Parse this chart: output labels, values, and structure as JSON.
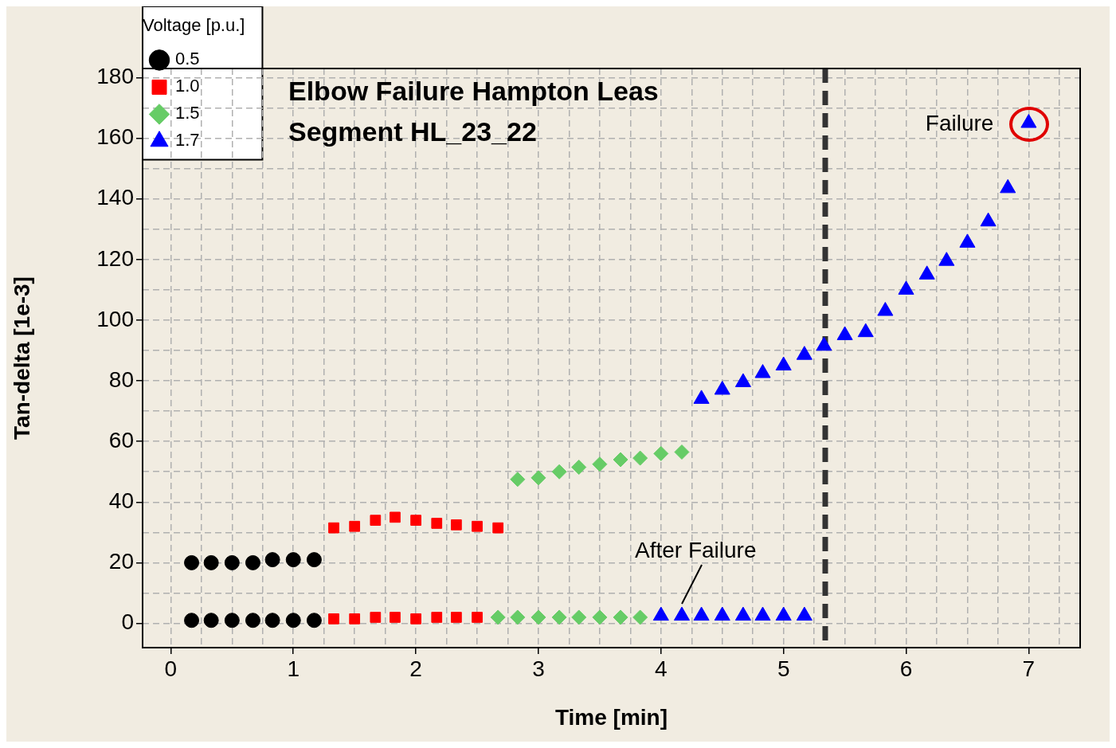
{
  "chart_data": {
    "type": "scatter",
    "title": "Elbow Failure Hampton Leas",
    "subtitle": "Segment HL_23_22",
    "xlabel": "Time [min]",
    "ylabel": "Tan-delta [1e-3]",
    "legend_title": "Voltage [p.u.]",
    "legend": "top left",
    "grid": true,
    "xlim": [
      -0.23,
      7.42
    ],
    "ylim": [
      -8,
      183
    ],
    "xticks": [
      0,
      {
        "value": 0.25,
        "label": null
      },
      {
        "value": 0.5,
        "label": null
      },
      {
        "value": 0.75,
        "label": null
      },
      1,
      {
        "value": 1.25,
        "label": null
      },
      {
        "value": 1.5,
        "label": null
      },
      {
        "value": 1.75,
        "label": null
      },
      2,
      {
        "value": 2.25,
        "label": null
      },
      {
        "value": 2.5,
        "label": null
      },
      {
        "value": 2.75,
        "label": null
      },
      3,
      {
        "value": 3.25,
        "label": null
      },
      {
        "value": 3.5,
        "label": null
      },
      {
        "value": 3.75,
        "label": null
      },
      4,
      {
        "value": 4.25,
        "label": null
      },
      {
        "value": 4.5,
        "label": null
      },
      {
        "value": 4.75,
        "label": null
      },
      5,
      {
        "value": 5.25,
        "label": null
      },
      {
        "value": 5.5,
        "label": null
      },
      {
        "value": 5.75,
        "label": null
      },
      6,
      {
        "value": 6.25,
        "label": null
      },
      {
        "value": 6.5,
        "label": null
      },
      {
        "value": 6.75,
        "label": null
      },
      7,
      {
        "value": 7.25,
        "label": null
      }
    ],
    "yticks": [
      0,
      {
        "value": 10,
        "label": null
      },
      20,
      {
        "value": 30,
        "label": null
      },
      40,
      {
        "value": 50,
        "label": null
      },
      60,
      {
        "value": 70,
        "label": null
      },
      80,
      {
        "value": 90,
        "label": null
      },
      100,
      {
        "value": 110,
        "label": null
      },
      120,
      {
        "value": 130,
        "label": null
      },
      140,
      {
        "value": 150,
        "label": null
      },
      160,
      {
        "value": 170,
        "label": null
      },
      180
    ],
    "series": [
      {
        "name": "0.5",
        "color": "#000000",
        "marker": "circle",
        "x": [
          0.17,
          0.33,
          0.5,
          0.67,
          0.83,
          1.0,
          1.17,
          0.17,
          0.33,
          0.5,
          0.67,
          0.83,
          1.0,
          1.17
        ],
        "values": [
          20,
          20,
          20,
          20,
          21,
          21,
          21,
          1,
          1,
          1,
          1,
          1,
          1,
          1
        ]
      },
      {
        "name": "1.0",
        "color": "#ff0000",
        "marker": "square",
        "x": [
          1.33,
          1.5,
          1.67,
          1.83,
          2.0,
          2.17,
          2.33,
          2.5,
          2.67,
          1.33,
          1.5,
          1.67,
          1.83,
          2.0,
          2.17,
          2.33,
          2.5
        ],
        "values": [
          31.5,
          32,
          34,
          35,
          34,
          33,
          32.5,
          32,
          31.5,
          1.5,
          1.5,
          2,
          2,
          1.5,
          2,
          2,
          2
        ]
      },
      {
        "name": "1.5",
        "color": "#66cc66",
        "marker": "diamond",
        "x": [
          2.83,
          3.0,
          3.17,
          3.33,
          3.5,
          3.67,
          3.83,
          4.0,
          4.17,
          2.67,
          2.83,
          3.0,
          3.17,
          3.33,
          3.5,
          3.67,
          3.83
        ],
        "values": [
          47.5,
          48,
          50,
          51.5,
          52.5,
          54,
          54.5,
          56,
          56.5,
          2,
          2,
          2,
          2,
          2,
          2,
          2,
          2
        ]
      },
      {
        "name": "1.7",
        "color": "#0000ff",
        "marker": "triangle",
        "x": [
          4.33,
          4.5,
          4.67,
          4.83,
          5.0,
          5.17,
          5.33,
          5.5,
          5.67,
          5.83,
          6.0,
          6.17,
          6.33,
          6.5,
          6.67,
          6.83,
          7.0,
          4.0,
          4.17,
          4.33,
          4.5,
          4.67,
          4.83,
          5.0,
          5.17
        ],
        "values": [
          74,
          77,
          79.5,
          82.5,
          85,
          88.5,
          91.5,
          95,
          96,
          103,
          110,
          115,
          119.5,
          125.5,
          132.5,
          143.5,
          165,
          2.5,
          2.5,
          2.5,
          2.5,
          2.5,
          2.5,
          2.5,
          2.5
        ]
      }
    ],
    "ref_lines": [
      {
        "axis": "x",
        "value": 5.34,
        "color": "#333333",
        "line_style": "dashed"
      }
    ],
    "annotations": [
      {
        "text": "Failure",
        "x": 7,
        "y": 165
      },
      {
        "text": "After Failure",
        "x": 4.17,
        "y": 2.5
      }
    ]
  }
}
